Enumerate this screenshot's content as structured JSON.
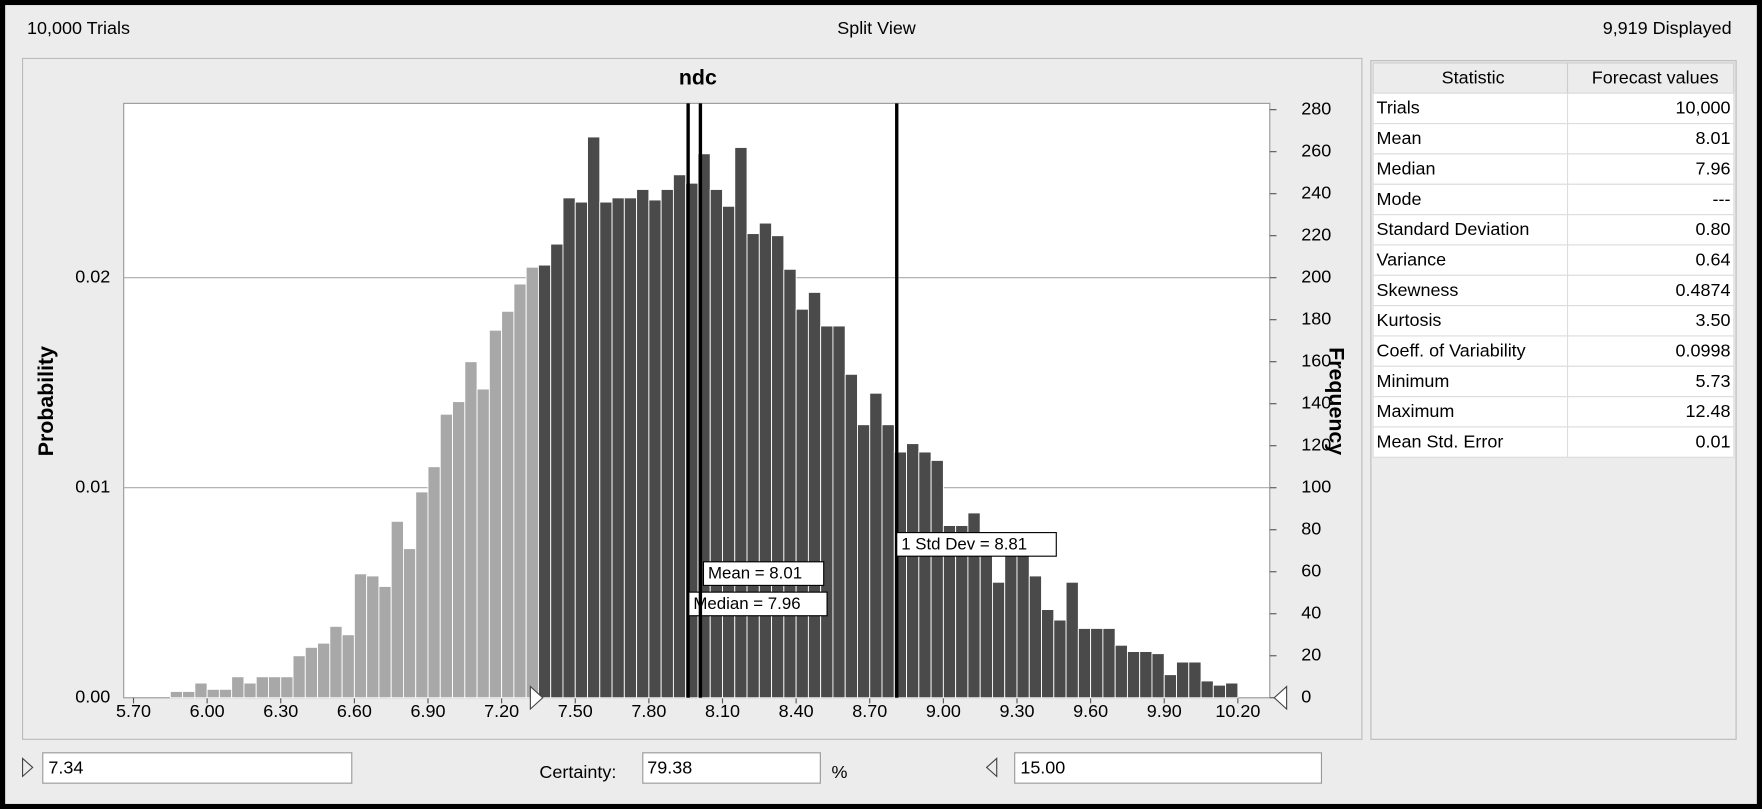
{
  "header": {
    "trials": "10,000 Trials",
    "view": "Split View",
    "displayed": "9,919 Displayed"
  },
  "chart_data": {
    "type": "histogram",
    "title": "ndc",
    "y_label": "Probability",
    "y2_label": "Frequency",
    "bins": [
      5.85,
      5.9,
      5.95,
      6,
      6.05,
      6.1,
      6.15,
      6.2,
      6.25,
      6.3,
      6.35,
      6.4,
      6.45,
      6.5,
      6.55,
      6.6,
      6.65,
      6.7,
      6.75,
      6.8,
      6.85,
      6.9,
      6.95,
      7,
      7.05,
      7.1,
      7.15,
      7.2,
      7.25,
      7.3,
      7.35,
      7.4,
      7.45,
      7.5,
      7.55,
      7.6,
      7.65,
      7.7,
      7.75,
      7.8,
      7.85,
      7.9,
      7.95,
      8,
      8.05,
      8.1,
      8.15,
      8.2,
      8.25,
      8.3,
      8.35,
      8.4,
      8.45,
      8.5,
      8.55,
      8.6,
      8.65,
      8.7,
      8.75,
      8.8,
      8.85,
      8.9,
      8.95,
      9,
      9.05,
      9.1,
      9.15,
      9.2,
      9.25,
      9.3,
      9.35,
      9.4,
      9.45,
      9.5,
      9.55,
      9.6,
      9.65,
      9.7,
      9.75,
      9.8,
      9.85,
      9.9,
      9.95,
      10,
      10.05,
      10.1,
      10.15,
      10.2
    ],
    "series": [
      {
        "name": "Frequency",
        "axis": "y2",
        "color": "#4a4a4a",
        "outside_color": "#a8a8a8",
        "values": [
          3,
          3,
          7,
          4,
          4,
          10,
          7,
          10,
          10,
          10,
          20,
          24,
          26,
          34,
          30,
          59,
          58,
          53,
          84,
          71,
          98,
          110,
          135,
          141,
          160,
          147,
          175,
          184,
          197,
          205,
          206,
          216,
          238,
          236,
          267,
          236,
          238,
          238,
          242,
          237,
          242,
          249,
          245,
          259,
          242,
          234,
          262,
          221,
          226,
          220,
          204,
          185,
          193,
          177,
          177,
          154,
          130,
          145,
          130,
          117,
          121,
          117,
          113,
          82,
          82,
          88,
          79,
          55,
          73,
          68,
          58,
          42,
          37,
          55,
          33,
          33,
          33,
          25,
          22,
          22,
          21,
          11,
          17,
          17,
          8,
          6,
          7
        ]
      }
    ],
    "xlim": [
      5.66,
      10.33
    ],
    "xticks": [
      {
        "value": 5.7,
        "label": "5.70"
      },
      {
        "value": 6,
        "label": "6.00"
      },
      {
        "value": 6.3,
        "label": "6.30"
      },
      {
        "value": 6.6,
        "label": "6.60"
      },
      {
        "value": 6.9,
        "label": "6.90"
      },
      {
        "value": 7.2,
        "label": "7.20"
      },
      {
        "value": 7.5,
        "label": "7.50"
      },
      {
        "value": 7.8,
        "label": "7.80"
      },
      {
        "value": 8.1,
        "label": "8.10"
      },
      {
        "value": 8.4,
        "label": "8.40"
      },
      {
        "value": 8.7,
        "label": "8.70"
      },
      {
        "value": 9,
        "label": "9.00"
      },
      {
        "value": 9.3,
        "label": "9.30"
      },
      {
        "value": 9.6,
        "label": "9.60"
      },
      {
        "value": 9.9,
        "label": "9.90"
      },
      {
        "value": 10.2,
        "label": "10.20"
      }
    ],
    "ylim": [
      0,
      0.0283
    ],
    "yticks": [
      {
        "value": 0,
        "label": "0.00"
      },
      0.01,
      0.02
    ],
    "y2lim": [
      0,
      283
    ],
    "y2ticks": [
      0,
      20,
      40,
      60,
      80,
      100,
      120,
      140,
      160,
      180,
      200,
      220,
      240,
      260,
      280
    ],
    "grid": true,
    "markers": [
      {
        "label": "Median = 7.96",
        "value": 7.96
      },
      {
        "label": "Mean = 8.01",
        "value": 8.01
      },
      {
        "label": "1 Std Dev = 8.81",
        "value": 8.81
      }
    ]
  },
  "statistics": {
    "columns": [
      "Statistic",
      "Forecast values"
    ],
    "rows": [
      [
        "Trials",
        "10,000"
      ],
      [
        "Mean",
        "8.01"
      ],
      [
        "Median",
        "7.96"
      ],
      [
        "Mode",
        "---"
      ],
      [
        "Standard Deviation",
        "0.80"
      ],
      [
        "Variance",
        "0.64"
      ],
      [
        "Skewness",
        "0.4874"
      ],
      [
        "Kurtosis",
        "3.50"
      ],
      [
        "Coeff. of Variability",
        "0.0998"
      ],
      [
        "Minimum",
        "5.73"
      ],
      [
        "Maximum",
        "12.48"
      ],
      [
        "Mean Std. Error",
        "0.01"
      ]
    ]
  },
  "controls": {
    "lower": "7.34",
    "certainty_label": "Certainty:",
    "certainty": "79.38",
    "unit": "%",
    "upper": "15.00"
  }
}
